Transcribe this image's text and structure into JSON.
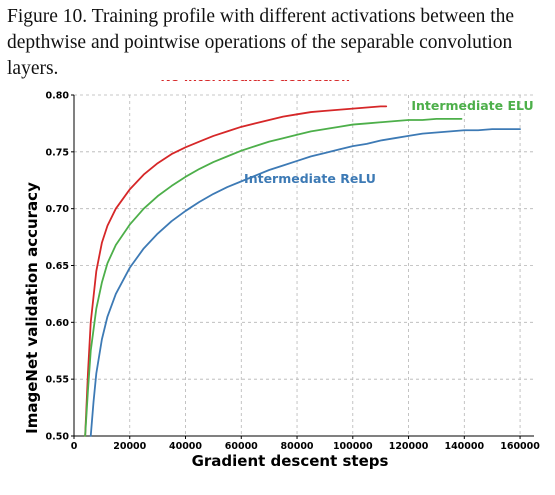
{
  "caption": "Figure 10. Training profile with different activations between the depthwise and pointwise operations of the separable convolution layers.",
  "chart_data": {
    "type": "line",
    "title": "",
    "xlabel": "Gradient descent steps",
    "ylabel": "ImageNet validation accuracy",
    "xlim": [
      0,
      165000
    ],
    "ylim": [
      0.5,
      0.8
    ],
    "xticks": [
      0,
      20000,
      40000,
      60000,
      80000,
      100000,
      120000,
      140000,
      160000
    ],
    "xtick_labels": [
      "0",
      "20000",
      "40000",
      "60000",
      "80000",
      "100000",
      "120000",
      "140000",
      "160000"
    ],
    "yticks": [
      0.5,
      0.55,
      0.6,
      0.65,
      0.7,
      0.75,
      0.8
    ],
    "ytick_labels": [
      "0.50",
      "0.55",
      "0.60",
      "0.65",
      "0.70",
      "0.75",
      "0.80"
    ],
    "grid": true,
    "series": [
      {
        "name": "No intermediate activation",
        "color": "#d62728",
        "x": [
          4000,
          5000,
          6000,
          8000,
          10000,
          12000,
          15000,
          20000,
          25000,
          30000,
          35000,
          40000,
          45000,
          50000,
          55000,
          60000,
          65000,
          70000,
          75000,
          80000,
          85000,
          90000,
          95000,
          100000,
          105000,
          110000,
          112000
        ],
        "y": [
          0.5,
          0.555,
          0.6,
          0.645,
          0.67,
          0.685,
          0.7,
          0.717,
          0.73,
          0.74,
          0.748,
          0.754,
          0.759,
          0.764,
          0.768,
          0.772,
          0.775,
          0.778,
          0.781,
          0.783,
          0.785,
          0.786,
          0.787,
          0.788,
          0.789,
          0.79,
          0.79
        ]
      },
      {
        "name": "Intermediate ELU",
        "color": "#4daf4a",
        "x": [
          4000,
          5000,
          6000,
          8000,
          10000,
          12000,
          15000,
          20000,
          25000,
          30000,
          35000,
          40000,
          45000,
          50000,
          55000,
          60000,
          65000,
          70000,
          75000,
          80000,
          85000,
          90000,
          95000,
          100000,
          105000,
          110000,
          115000,
          120000,
          125000,
          130000,
          135000,
          139000
        ],
        "y": [
          0.5,
          0.54,
          0.575,
          0.612,
          0.635,
          0.652,
          0.668,
          0.686,
          0.7,
          0.711,
          0.72,
          0.728,
          0.735,
          0.741,
          0.746,
          0.751,
          0.755,
          0.759,
          0.762,
          0.765,
          0.768,
          0.77,
          0.772,
          0.774,
          0.775,
          0.776,
          0.777,
          0.778,
          0.778,
          0.779,
          0.779,
          0.779
        ]
      },
      {
        "name": "Intermediate ReLU",
        "color": "#3d7ab5",
        "x": [
          6000,
          7000,
          8000,
          10000,
          12000,
          15000,
          20000,
          25000,
          30000,
          35000,
          40000,
          45000,
          50000,
          55000,
          60000,
          65000,
          70000,
          75000,
          80000,
          85000,
          90000,
          95000,
          100000,
          105000,
          110000,
          115000,
          120000,
          125000,
          130000,
          135000,
          140000,
          145000,
          150000,
          155000,
          160000
        ],
        "y": [
          0.5,
          0.53,
          0.555,
          0.585,
          0.605,
          0.625,
          0.648,
          0.665,
          0.678,
          0.689,
          0.698,
          0.706,
          0.713,
          0.719,
          0.724,
          0.729,
          0.734,
          0.738,
          0.742,
          0.746,
          0.749,
          0.752,
          0.755,
          0.757,
          0.76,
          0.762,
          0.764,
          0.766,
          0.767,
          0.768,
          0.769,
          0.769,
          0.77,
          0.77,
          0.77
        ]
      }
    ]
  }
}
